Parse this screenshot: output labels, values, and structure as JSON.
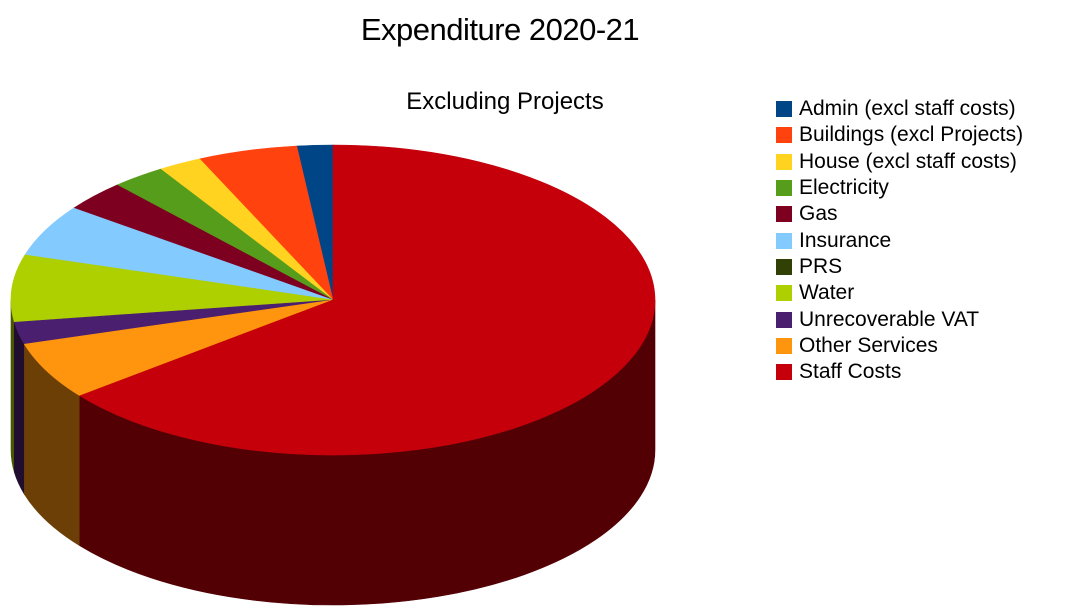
{
  "chart_data": {
    "type": "pie",
    "title": "Expenditure 2020-21",
    "subtitle": "Excluding Projects",
    "legend_position": "right",
    "three_d": true,
    "slices": [
      {
        "label": "Admin (excl staff costs)",
        "value": 1.8,
        "color": "#004586"
      },
      {
        "label": "Buildings (excl Projects)",
        "value": 5.0,
        "color": "#ff420e"
      },
      {
        "label": "House (excl staff costs)",
        "value": 2.2,
        "color": "#ffd320"
      },
      {
        "label": "Electricity",
        "value": 2.7,
        "color": "#579d1c"
      },
      {
        "label": "Gas",
        "value": 3.2,
        "color": "#7e0021"
      },
      {
        "label": "Insurance",
        "value": 5.4,
        "color": "#83caff"
      },
      {
        "label": "PRS",
        "value": 0.0,
        "color": "#314004"
      },
      {
        "label": "Water",
        "value": 7.0,
        "color": "#aecf00"
      },
      {
        "label": "Unrecoverable VAT",
        "value": 2.3,
        "color": "#4b1f6f"
      },
      {
        "label": "Other Services",
        "value": 6.0,
        "color": "#ff950e"
      },
      {
        "label": "Staff Costs",
        "value": 64.4,
        "color": "#c5000b"
      }
    ]
  }
}
